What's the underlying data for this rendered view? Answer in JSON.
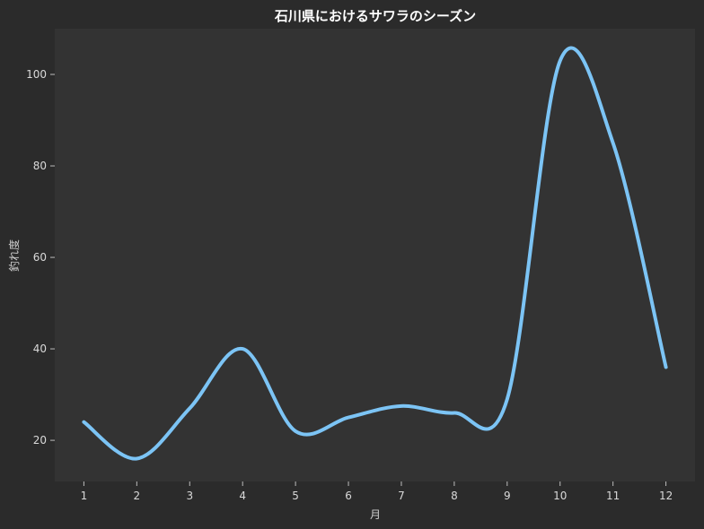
{
  "chart_data": {
    "type": "line",
    "title": "石川県におけるサワラのシーズン",
    "xlabel": "月",
    "ylabel": "釣れ度",
    "x": [
      1,
      2,
      3,
      4,
      5,
      6,
      7,
      8,
      9,
      10,
      11,
      12
    ],
    "series": [
      {
        "values": [
          24,
          16,
          27,
          40,
          22,
          25,
          27.5,
          26,
          29,
          103,
          85,
          36
        ],
        "color": "#7cc4f5"
      }
    ],
    "xlim": [
      0.45,
      12.55
    ],
    "ylim": [
      11,
      110
    ],
    "xticks": [
      1,
      2,
      3,
      4,
      5,
      6,
      7,
      8,
      9,
      10,
      11,
      12
    ],
    "yticks": [
      20,
      40,
      60,
      80,
      100
    ],
    "grid": false,
    "colors": {
      "background": "#2b2b2b",
      "plot_area": "#333333",
      "line": "#7cc4f5"
    }
  }
}
